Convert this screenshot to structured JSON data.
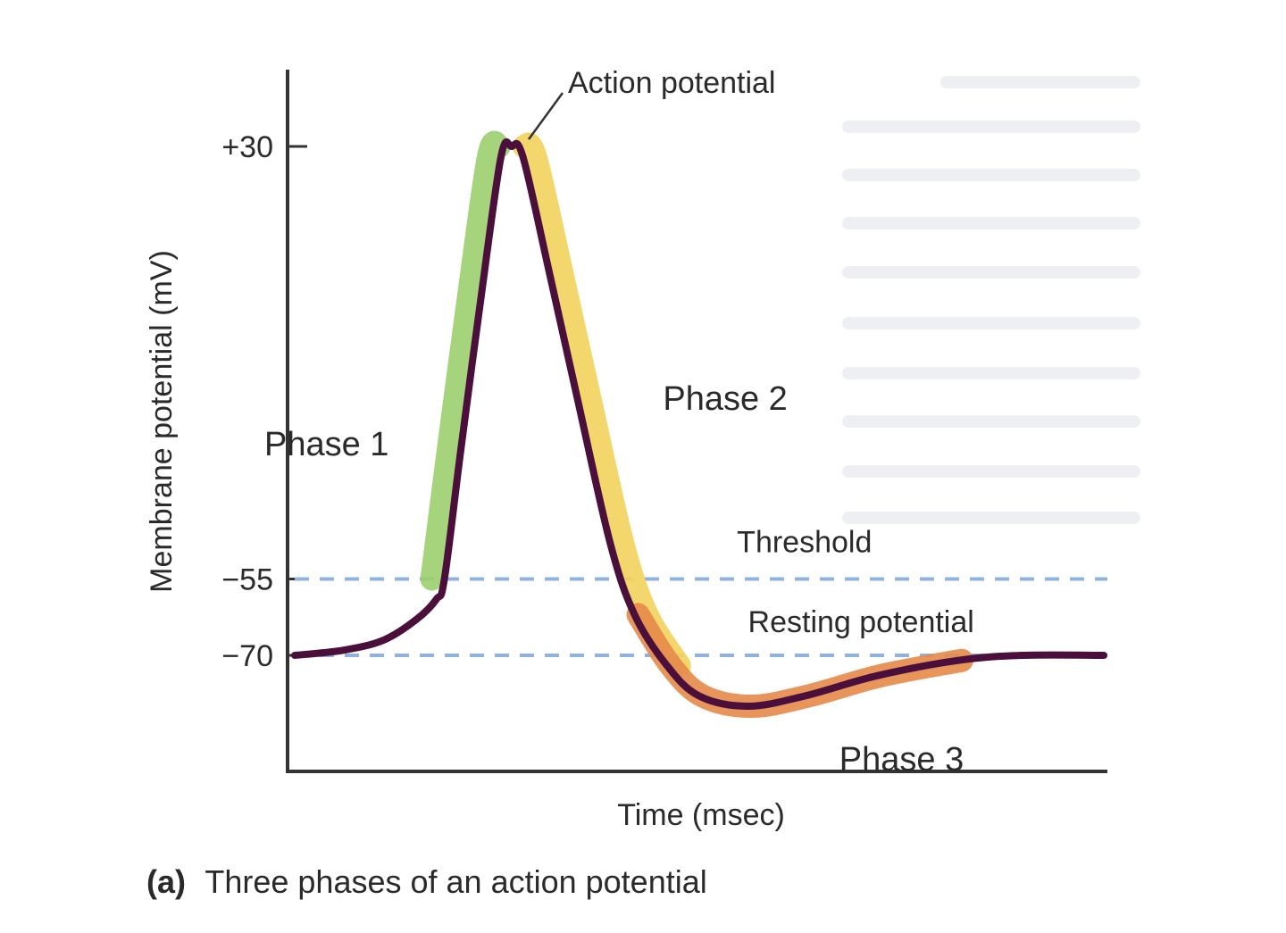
{
  "chart_data": {
    "type": "line",
    "title": "",
    "xlabel": "Time (msec)",
    "ylabel": "Membrane potential (mV)",
    "ylim": [
      -95,
      35
    ],
    "xlim": [
      0,
      10
    ],
    "y_ticks": [
      {
        "value": 30,
        "label": "+30"
      },
      {
        "value": -55,
        "label": "−55"
      },
      {
        "value": -70,
        "label": "−70"
      }
    ],
    "reference_lines": [
      {
        "name": "Threshold",
        "y": -55,
        "style": "dashed",
        "color": "#8fb2e0"
      },
      {
        "name": "Resting potential",
        "y": -70,
        "style": "dashed",
        "color": "#8fb2e0"
      }
    ],
    "series": [
      {
        "values": [
          [
            0.0,
            -70
          ],
          [
            0.6,
            -69
          ],
          [
            1.1,
            -67
          ],
          [
            1.5,
            -63
          ],
          [
            1.75,
            -59
          ],
          [
            1.85,
            -55
          ],
          [
            2.05,
            -30
          ],
          [
            2.3,
            0
          ],
          [
            2.55,
            28
          ],
          [
            2.68,
            30
          ],
          [
            2.82,
            28
          ],
          [
            3.15,
            5
          ],
          [
            3.5,
            -20
          ],
          [
            3.9,
            -48
          ],
          [
            4.2,
            -62
          ],
          [
            4.6,
            -72
          ],
          [
            5.0,
            -78
          ],
          [
            5.6,
            -80
          ],
          [
            6.3,
            -78
          ],
          [
            7.2,
            -74
          ],
          [
            8.2,
            -71
          ],
          [
            9.0,
            -70
          ],
          [
            10.0,
            -70
          ]
        ]
      }
    ],
    "annotations": [
      {
        "text": "Action potential",
        "x": 2.68,
        "y": 30
      },
      {
        "text": "Phase 1",
        "x": 2.05,
        "y": -30,
        "color": "#9ccf6e"
      },
      {
        "text": "Phase 2",
        "x": 3.5,
        "y": -20,
        "color": "#f3d35c"
      },
      {
        "text": "Threshold",
        "x": 6.3,
        "y": -55
      },
      {
        "text": "Resting potential",
        "x": 7.0,
        "y": -70
      },
      {
        "text": "Phase 3",
        "x": 7.5,
        "y": -80,
        "color": "#e58a4a"
      }
    ],
    "caption": {
      "prefix": "(a)",
      "text": "Three phases of an action potential"
    }
  }
}
